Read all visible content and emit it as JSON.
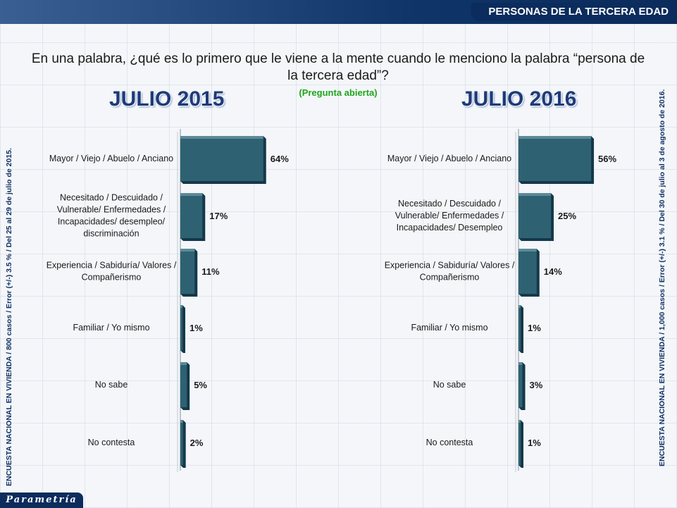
{
  "header": {
    "title": "PERSONAS DE LA TERCERA EDAD"
  },
  "question": {
    "line1": "En una palabra, ¿qué es lo primero que le viene a la mente cuando le menciono la palabra “persona de",
    "line2": "la tercera edad”?",
    "note": "(Pregunta abierta)"
  },
  "side_notes": {
    "left": "ENCUESTA NACIONAL EN VIVIENDA / 800 casos / Error (+/-) 3.5 % / Del 25 al 29 de julio de 2015.",
    "right": "ENCUESTA NACIONAL EN VIVIENDA / 1,000 casos / Error (+/-) 3.1 % / Del 30 de julio al 3 de agosto de 2016."
  },
  "footer": {
    "logo": "Parametría"
  },
  "colors": {
    "bar": "#2e6272",
    "bar_top": "#5c8a97",
    "bar_shadow": "#14384a",
    "title": "#1e3a78"
  },
  "chart_data": [
    {
      "type": "bar",
      "orientation": "horizontal",
      "title": "JULIO 2015",
      "categories": [
        [
          "Mayor / Viejo / Abuelo / Anciano"
        ],
        [
          "Necesitado / Descuidado /",
          "Vulnerable/ Enfermedades /",
          "Incapacidades/ desempleo/",
          "discriminación"
        ],
        [
          "Experiencia / Sabiduría/ Valores /",
          "Compañerismo"
        ],
        [
          "Familiar / Yo mismo"
        ],
        [
          "No sabe"
        ],
        [
          "No contesta"
        ]
      ],
      "values": [
        64,
        17,
        11,
        1,
        5,
        2
      ],
      "value_labels": [
        "64%",
        "17%",
        "11%",
        "1%",
        "5%",
        "2%"
      ],
      "xlim": [
        0,
        100
      ]
    },
    {
      "type": "bar",
      "orientation": "horizontal",
      "title": "JULIO 2016",
      "categories": [
        [
          "Mayor / Viejo / Abuelo / Anciano"
        ],
        [
          "Necesitado / Descuidado /",
          "Vulnerable/ Enfermedades /",
          "Incapacidades/ Desempleo"
        ],
        [
          "Experiencia / Sabiduría/ Valores /",
          "Compañerismo"
        ],
        [
          "Familiar / Yo mismo"
        ],
        [
          "No sabe"
        ],
        [
          "No contesta"
        ]
      ],
      "values": [
        56,
        25,
        14,
        1,
        3,
        1
      ],
      "value_labels": [
        "56%",
        "25%",
        "14%",
        "1%",
        "3%",
        "1%"
      ],
      "xlim": [
        0,
        100
      ]
    }
  ]
}
